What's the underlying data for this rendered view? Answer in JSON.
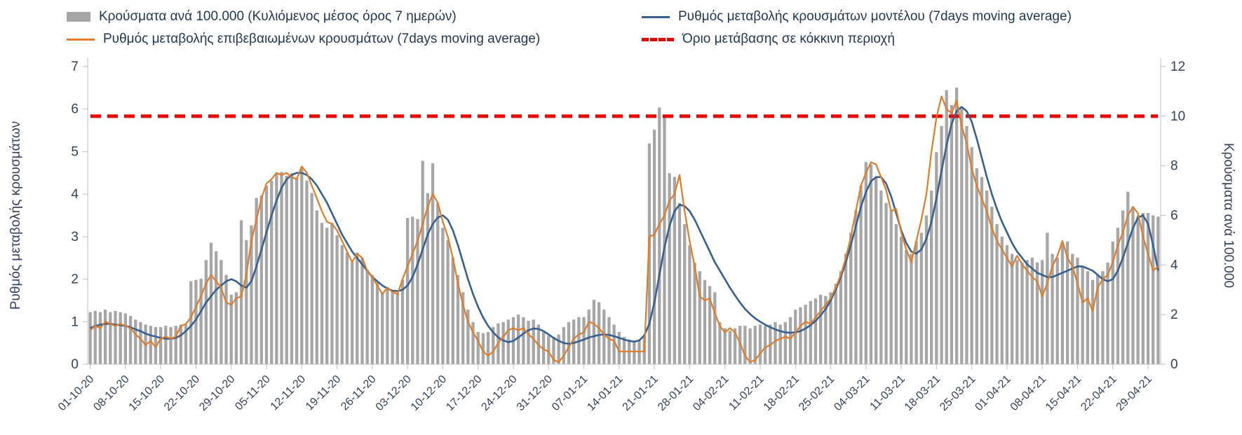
{
  "legend": {
    "items": [
      {
        "label": "Κρούσματα ανά 100.000 (Κυλιόμενος μέσος όρος 7 ημερών)",
        "type": "bar",
        "color": "#a6a6a6"
      },
      {
        "label": "Ρυθμός μεταβολής κρουσμάτων μοντέλου (7days moving average)",
        "type": "line",
        "color": "#366092"
      },
      {
        "label": "Ρυθμός μεταβολής επιβεβαιωμένων κρουσμάτων (7days moving average)",
        "type": "line",
        "color": "#e07c28"
      },
      {
        "label": "Όριο μετάβασης σε κόκκινη περιοχή",
        "type": "dashed-line",
        "color": "#ee0000"
      }
    ]
  },
  "chart_data": {
    "type": "bar",
    "title": "",
    "left_axis": {
      "label": "Ρυθμός μεταβολής κρουσμάτων",
      "min": 0,
      "max": 7,
      "ticks": [
        0,
        1,
        2,
        3,
        4,
        5,
        6,
        7
      ]
    },
    "right_axis": {
      "label": "Κρούσματα ανά 100.000",
      "min": 0,
      "max": 12,
      "ticks": [
        0,
        2,
        4,
        6,
        8,
        10,
        12
      ]
    },
    "x_tick_interval_days": 7,
    "x_tick_labels": [
      "01-10-20",
      "08-10-20",
      "15-10-20",
      "22-10-20",
      "29-10-20",
      "05-11-20",
      "12-11-20",
      "19-11-20",
      "26-11-20",
      "03-12-20",
      "10-12-20",
      "17-12-20",
      "24-12-20",
      "31-12-20",
      "07-01-21",
      "14-01-21",
      "21-01-21",
      "28-01-21",
      "04-02-21",
      "11-02-21",
      "18-02-21",
      "25-02-21",
      "04-03-21",
      "11-03-21",
      "18-03-21",
      "25-03-21",
      "01-04-21",
      "08-04-21",
      "15-04-21",
      "22-04-21",
      "29-04-21"
    ],
    "threshold": {
      "name": "Όριο μετάβασης σε κόκκινη περιοχή",
      "axis": "right",
      "value": 10,
      "color": "#ee0000",
      "style": "dashed"
    },
    "grid": false,
    "legend_position": "top",
    "series": [
      {
        "name": "Κρούσματα ανά 100.000 (Κυλιόμενος μέσος όρος 7 ημερών)",
        "type": "bar",
        "axis": "right",
        "color": "#a6a6a6",
        "values": [
          2.1,
          2.15,
          2.1,
          2.2,
          2.1,
          2.15,
          2.1,
          2.05,
          1.95,
          1.8,
          1.7,
          1.6,
          1.55,
          1.5,
          1.5,
          1.55,
          1.5,
          1.55,
          1.6,
          1.6,
          3.35,
          3.4,
          3.45,
          4.2,
          4.9,
          4.55,
          4.2,
          3.6,
          2.8,
          2.9,
          5.8,
          5.0,
          5.6,
          6.7,
          6.8,
          7.2,
          7.4,
          7.7,
          7.75,
          7.6,
          7.7,
          7.5,
          7.9,
          7.4,
          6.9,
          6.2,
          5.7,
          5.5,
          5.7,
          5.2,
          4.8,
          4.5,
          4.1,
          4.5,
          4.3,
          3.8,
          3.6,
          3.3,
          2.85,
          3.1,
          2.9,
          2.85,
          3.4,
          5.9,
          5.95,
          5.85,
          8.2,
          6.9,
          8.1,
          6.5,
          5.5,
          5.0,
          4.3,
          3.6,
          2.9,
          2.2,
          1.7,
          1.3,
          1.25,
          1.3,
          1.5,
          1.65,
          1.7,
          1.8,
          1.9,
          2.0,
          1.9,
          1.75,
          1.8,
          1.6,
          1.3,
          1.15,
          1.1,
          1.2,
          1.5,
          1.7,
          1.8,
          1.9,
          1.9,
          2.2,
          2.6,
          2.5,
          2.2,
          1.9,
          1.6,
          1.3,
          1.1,
          1.0,
          0.95,
          1.0,
          1.1,
          8.9,
          9.45,
          10.35,
          10.0,
          7.7,
          7.55,
          6.5,
          5.65,
          4.8,
          4.1,
          3.75,
          3.4,
          3.15,
          2.9,
          1.7,
          1.45,
          1.35,
          1.45,
          1.55,
          1.55,
          1.45,
          1.55,
          1.6,
          1.55,
          1.6,
          1.7,
          1.6,
          1.7,
          1.9,
          2.2,
          2.3,
          2.4,
          2.55,
          2.65,
          2.8,
          2.75,
          2.9,
          3.25,
          3.75,
          4.45,
          5.3,
          6.2,
          7.2,
          8.15,
          8.05,
          7.55,
          7.0,
          6.5,
          6.2,
          5.65,
          5.15,
          4.6,
          4.45,
          4.95,
          5.3,
          6.0,
          7.0,
          8.55,
          9.6,
          11.05,
          10.45,
          11.15,
          10.3,
          9.6,
          8.75,
          7.9,
          7.55,
          7.0,
          6.35,
          5.65,
          5.15,
          4.8,
          4.45,
          4.2,
          4.1,
          4.2,
          4.3,
          4.1,
          4.2,
          5.3,
          4.45,
          4.3,
          4.9,
          4.95,
          4.45,
          4.3,
          3.95,
          3.75,
          3.4,
          3.6,
          3.75,
          4.1,
          4.95,
          5.5,
          6.2,
          6.95,
          6.35,
          6.0,
          6.1,
          6.1,
          6.0,
          5.95
        ]
      },
      {
        "name": "Ρυθμός μεταβολής κρουσμάτων μοντέλου (7days moving average)",
        "type": "line",
        "axis": "left",
        "color": "#366092",
        "values": [
          0.85,
          0.9,
          0.93,
          0.95,
          0.95,
          0.93,
          0.92,
          0.9,
          0.87,
          0.82,
          0.78,
          0.72,
          0.68,
          0.65,
          0.62,
          0.6,
          0.6,
          0.62,
          0.68,
          0.78,
          0.9,
          1.05,
          1.25,
          1.45,
          1.6,
          1.75,
          1.85,
          1.95,
          2.0,
          1.95,
          1.85,
          1.8,
          1.95,
          2.3,
          2.7,
          3.1,
          3.5,
          3.85,
          4.15,
          4.35,
          4.45,
          4.5,
          4.5,
          4.45,
          4.35,
          4.2,
          4.0,
          3.8,
          3.55,
          3.3,
          3.05,
          2.85,
          2.65,
          2.5,
          2.35,
          2.2,
          2.05,
          1.95,
          1.85,
          1.78,
          1.73,
          1.72,
          1.75,
          1.85,
          2.05,
          2.35,
          2.7,
          3.05,
          3.3,
          3.45,
          3.5,
          3.4,
          3.15,
          2.8,
          2.4,
          2.0,
          1.65,
          1.35,
          1.1,
          0.9,
          0.75,
          0.63,
          0.56,
          0.52,
          0.55,
          0.63,
          0.72,
          0.8,
          0.84,
          0.83,
          0.78,
          0.7,
          0.62,
          0.55,
          0.5,
          0.48,
          0.5,
          0.54,
          0.58,
          0.63,
          0.66,
          0.69,
          0.7,
          0.69,
          0.66,
          0.62,
          0.58,
          0.55,
          0.53,
          0.56,
          0.68,
          0.95,
          1.45,
          2.1,
          2.75,
          3.25,
          3.6,
          3.75,
          3.72,
          3.6,
          3.4,
          3.15,
          2.9,
          2.65,
          2.4,
          2.2,
          2.0,
          1.8,
          1.62,
          1.45,
          1.3,
          1.18,
          1.08,
          1.0,
          0.93,
          0.87,
          0.82,
          0.78,
          0.75,
          0.74,
          0.75,
          0.78,
          0.84,
          0.92,
          1.02,
          1.15,
          1.3,
          1.5,
          1.75,
          2.05,
          2.4,
          2.8,
          3.25,
          3.7,
          4.05,
          4.3,
          4.4,
          4.4,
          4.25,
          3.95,
          3.55,
          3.15,
          2.85,
          2.65,
          2.6,
          2.7,
          2.95,
          3.35,
          3.9,
          4.55,
          5.15,
          5.65,
          5.95,
          6.05,
          5.95,
          5.7,
          5.3,
          4.85,
          4.4,
          4.0,
          3.65,
          3.35,
          3.1,
          2.85,
          2.65,
          2.5,
          2.35,
          2.25,
          2.15,
          2.1,
          2.05,
          2.05,
          2.1,
          2.15,
          2.2,
          2.25,
          2.3,
          2.3,
          2.25,
          2.2,
          2.1,
          2.0,
          1.95,
          2.0,
          2.2,
          2.5,
          2.85,
          3.2,
          3.45,
          3.5,
          3.3,
          2.8,
          2.2
        ]
      },
      {
        "name": "Ρυθμός μεταβολής επιβεβαιωμένων κρουσμάτων (7days moving average)",
        "type": "line",
        "axis": "left",
        "color": "#e07c28",
        "values": [
          0.8,
          0.9,
          0.85,
          1.0,
          0.95,
          0.9,
          0.95,
          0.9,
          0.85,
          0.7,
          0.6,
          0.45,
          0.55,
          0.4,
          0.6,
          0.65,
          0.6,
          0.65,
          0.9,
          0.95,
          1.1,
          1.35,
          1.6,
          1.9,
          2.1,
          1.95,
          1.8,
          1.45,
          1.4,
          1.55,
          1.6,
          2.1,
          2.9,
          3.4,
          3.9,
          4.25,
          4.35,
          4.5,
          4.45,
          4.5,
          4.4,
          4.35,
          4.65,
          4.5,
          4.2,
          3.9,
          3.6,
          3.35,
          3.3,
          3.15,
          2.9,
          2.65,
          2.4,
          2.6,
          2.5,
          2.2,
          2.05,
          1.85,
          1.65,
          1.8,
          1.7,
          1.65,
          2.0,
          2.3,
          2.6,
          2.9,
          3.3,
          3.7,
          4.0,
          3.8,
          3.35,
          3.0,
          2.5,
          1.9,
          1.4,
          1.0,
          0.75,
          0.55,
          0.3,
          0.2,
          0.3,
          0.5,
          0.65,
          0.8,
          0.85,
          0.8,
          0.85,
          0.7,
          0.6,
          0.45,
          0.35,
          0.3,
          0.1,
          0.05,
          0.2,
          0.4,
          0.6,
          0.7,
          0.75,
          1.0,
          0.95,
          0.85,
          0.7,
          0.6,
          0.55,
          0.3,
          0.3,
          0.3,
          0.3,
          0.3,
          0.3,
          3.0,
          3.05,
          3.3,
          3.5,
          3.85,
          4.0,
          4.45,
          3.6,
          2.9,
          2.3,
          1.6,
          1.5,
          1.55,
          1.2,
          0.9,
          0.75,
          0.85,
          0.75,
          0.5,
          0.2,
          0.05,
          0.1,
          0.25,
          0.4,
          0.45,
          0.55,
          0.6,
          0.65,
          0.6,
          0.75,
          0.9,
          1.0,
          0.95,
          1.1,
          1.25,
          1.4,
          1.55,
          1.8,
          2.1,
          2.5,
          3.0,
          3.6,
          4.2,
          4.5,
          4.75,
          4.7,
          4.4,
          4.1,
          3.6,
          3.65,
          3.1,
          2.7,
          2.4,
          2.9,
          3.4,
          4.0,
          5.0,
          5.8,
          6.3,
          6.0,
          5.9,
          6.2,
          5.6,
          5.2,
          4.6,
          4.2,
          3.9,
          3.6,
          3.2,
          2.9,
          2.7,
          2.5,
          2.3,
          2.55,
          2.35,
          2.2,
          2.05,
          1.95,
          1.6,
          1.9,
          2.3,
          2.55,
          2.9,
          2.5,
          2.3,
          1.9,
          1.45,
          1.55,
          1.25,
          1.8,
          2.0,
          2.1,
          2.4,
          2.8,
          3.1,
          3.5,
          3.7,
          3.55,
          3.0,
          2.6,
          2.2,
          2.3
        ]
      }
    ]
  }
}
